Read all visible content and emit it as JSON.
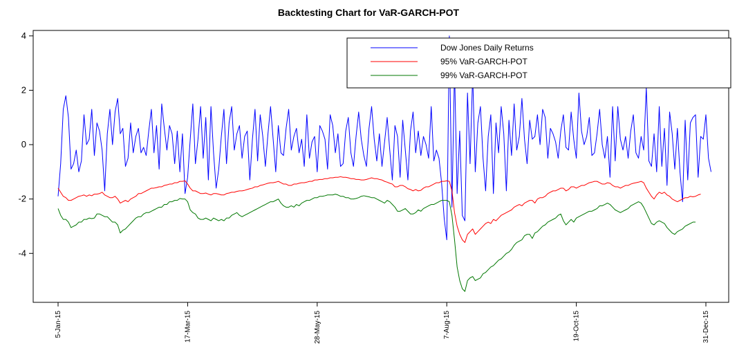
{
  "chart_data": {
    "type": "line",
    "title": "Backtesting Chart for VaR-GARCH-POT",
    "xlabel": "",
    "ylabel": "",
    "ylim": [
      -5.8,
      4.2
    ],
    "yticks": [
      -4,
      -2,
      0,
      2,
      4
    ],
    "x_tick_labels": [
      "5-Jan-15",
      "17-Mar-15",
      "28-May-15",
      "7-Aug-15",
      "19-Oct-15",
      "31-Dec-15"
    ],
    "x_tick_index": [
      0,
      50,
      100,
      150,
      200,
      250
    ],
    "n_points": 251,
    "legend_position": "top-right",
    "grid": false,
    "series": [
      {
        "name": "Dow Jones Daily Returns",
        "color": "#0000ff",
        "values": [
          -1.9,
          -0.7,
          1.3,
          1.8,
          1.0,
          -0.9,
          -0.7,
          -0.2,
          -1.0,
          -0.6,
          1.1,
          0.0,
          0.2,
          1.3,
          -0.4,
          0.8,
          0.5,
          -0.2,
          -1.7,
          0.4,
          1.3,
          0.0,
          1.2,
          1.7,
          0.4,
          0.6,
          -0.8,
          -0.5,
          0.8,
          -0.3,
          0.3,
          0.6,
          -0.3,
          -0.1,
          -0.4,
          0.5,
          1.3,
          -0.3,
          0.7,
          -0.9,
          1.5,
          0.6,
          -0.2,
          0.7,
          0.4,
          -0.7,
          0.5,
          -1.0,
          0.4,
          -1.8,
          -1.2,
          0.2,
          1.5,
          -0.7,
          0.2,
          1.4,
          -0.5,
          1.0,
          -1.3,
          1.4,
          -0.3,
          -1.6,
          -0.9,
          0.3,
          1.3,
          -0.7,
          0.8,
          1.4,
          -0.2,
          0.4,
          0.7,
          -0.5,
          0.3,
          0.5,
          -1.3,
          0.2,
          1.3,
          -0.6,
          1.1,
          0.3,
          -0.8,
          0.4,
          1.4,
          0.2,
          -1.0,
          0.7,
          -0.3,
          -0.4,
          0.6,
          1.3,
          -0.2,
          0.3,
          0.6,
          -0.3,
          0.2,
          -0.8,
          1.1,
          -0.5,
          0.1,
          0.3,
          -1.0,
          0.7,
          0.5,
          0.2,
          -0.9,
          1.1,
          0.7,
          -0.3,
          0.4,
          -0.8,
          -0.7,
          0.5,
          1.0,
          -0.3,
          -0.8,
          0.3,
          1.2,
          0.2,
          -0.4,
          -0.8,
          0.6,
          1.4,
          0.2,
          -0.6,
          0.4,
          -0.8,
          0.1,
          1.0,
          -0.2,
          -1.3,
          0.7,
          0.3,
          -1.2,
          0.9,
          -0.2,
          -1.3,
          0.5,
          1.2,
          -0.3,
          0.5,
          -0.4,
          0.3,
          0.0,
          -0.5,
          1.4,
          -0.6,
          -0.2,
          -0.5,
          -1.4,
          -2.7,
          -3.5,
          4.0,
          -2.3,
          2.8,
          -1.8,
          0.5,
          -2.6,
          -2.8,
          1.9,
          -0.7,
          2.6,
          -1.0,
          0.8,
          1.4,
          -0.5,
          -1.7,
          0.3,
          1.1,
          -1.8,
          0.8,
          -0.3,
          1.4,
          0.4,
          -1.7,
          0.9,
          -0.4,
          1.5,
          -0.2,
          0.3,
          1.7,
          0.2,
          -0.7,
          0.9,
          0.2,
          0.3,
          1.1,
          0.0,
          1.3,
          1.0,
          -0.5,
          0.6,
          0.4,
          0.1,
          -0.5,
          0.5,
          1.1,
          -0.1,
          -0.2,
          1.2,
          0.2,
          -0.5,
          1.9,
          0.5,
          0.0,
          0.3,
          1.0,
          -0.4,
          -0.3,
          0.4,
          1.3,
          0.0,
          -0.5,
          0.3,
          -1.2,
          1.4,
          -0.6,
          1.4,
          0.2,
          -0.2,
          0.3,
          -0.5,
          0.5,
          1.1,
          -0.3,
          -0.5,
          0.3,
          -0.2,
          2.1,
          -0.6,
          -0.8,
          0.4,
          -1.0,
          1.4,
          -0.8,
          0.6,
          -1.5,
          1.2,
          0.4,
          -0.9,
          0.6,
          -1.0,
          -2.1,
          0.9,
          -1.3,
          0.8,
          1.0,
          1.1,
          -1.2,
          0.3,
          0.2,
          1.1,
          -0.5,
          -1.0
        ]
      },
      {
        "name": "95% VaR-GARCH-POT",
        "color": "#ff0000",
        "values": [
          -1.6,
          -1.75,
          -1.9,
          -1.95,
          -2.05,
          -2.05,
          -2.0,
          -1.95,
          -1.9,
          -1.88,
          -1.85,
          -1.9,
          -1.85,
          -1.88,
          -1.82,
          -1.82,
          -1.8,
          -1.75,
          -1.85,
          -1.9,
          -1.95,
          -1.95,
          -1.9,
          -2.0,
          -2.15,
          -2.1,
          -2.05,
          -2.1,
          -2.0,
          -1.95,
          -1.9,
          -1.8,
          -1.8,
          -1.75,
          -1.7,
          -1.65,
          -1.6,
          -1.6,
          -1.58,
          -1.55,
          -1.55,
          -1.5,
          -1.48,
          -1.45,
          -1.45,
          -1.4,
          -1.4,
          -1.35,
          -1.35,
          -1.33,
          -1.45,
          -1.6,
          -1.7,
          -1.7,
          -1.75,
          -1.8,
          -1.8,
          -1.78,
          -1.82,
          -1.85,
          -1.8,
          -1.8,
          -1.82,
          -1.85,
          -1.85,
          -1.8,
          -1.78,
          -1.75,
          -1.75,
          -1.72,
          -1.7,
          -1.7,
          -1.68,
          -1.65,
          -1.62,
          -1.6,
          -1.55,
          -1.55,
          -1.5,
          -1.48,
          -1.45,
          -1.42,
          -1.4,
          -1.4,
          -1.38,
          -1.35,
          -1.4,
          -1.45,
          -1.45,
          -1.5,
          -1.5,
          -1.45,
          -1.45,
          -1.42,
          -1.4,
          -1.4,
          -1.38,
          -1.35,
          -1.35,
          -1.3,
          -1.3,
          -1.28,
          -1.28,
          -1.25,
          -1.25,
          -1.22,
          -1.22,
          -1.2,
          -1.2,
          -1.18,
          -1.2,
          -1.2,
          -1.22,
          -1.25,
          -1.25,
          -1.28,
          -1.28,
          -1.3,
          -1.3,
          -1.28,
          -1.25,
          -1.22,
          -1.25,
          -1.25,
          -1.28,
          -1.3,
          -1.35,
          -1.38,
          -1.42,
          -1.45,
          -1.55,
          -1.55,
          -1.5,
          -1.5,
          -1.55,
          -1.62,
          -1.65,
          -1.7,
          -1.65,
          -1.7,
          -1.68,
          -1.6,
          -1.55,
          -1.55,
          -1.5,
          -1.45,
          -1.4,
          -1.4,
          -1.35,
          -1.35,
          -1.33,
          -1.35,
          -1.7,
          -2.5,
          -3.0,
          -3.3,
          -3.5,
          -3.6,
          -3.3,
          -3.2,
          -3.1,
          -3.3,
          -3.2,
          -3.1,
          -3.0,
          -2.9,
          -2.85,
          -2.9,
          -2.75,
          -2.8,
          -2.7,
          -2.6,
          -2.55,
          -2.5,
          -2.45,
          -2.4,
          -2.3,
          -2.25,
          -2.2,
          -2.25,
          -2.15,
          -2.1,
          -2.05,
          -2.05,
          -2.15,
          -2.0,
          -1.95,
          -1.95,
          -1.9,
          -1.8,
          -1.75,
          -1.7,
          -1.7,
          -1.65,
          -1.6,
          -1.6,
          -1.7,
          -1.65,
          -1.55,
          -1.55,
          -1.6,
          -1.55,
          -1.5,
          -1.5,
          -1.45,
          -1.4,
          -1.38,
          -1.35,
          -1.35,
          -1.4,
          -1.45,
          -1.45,
          -1.4,
          -1.42,
          -1.5,
          -1.55,
          -1.55,
          -1.6,
          -1.55,
          -1.5,
          -1.5,
          -1.45,
          -1.42,
          -1.4,
          -1.38,
          -1.35,
          -1.4,
          -1.6,
          -1.75,
          -1.9,
          -2.0,
          -1.85,
          -1.75,
          -1.8,
          -1.75,
          -1.85,
          -1.9,
          -2.0,
          -2.05,
          -2.1,
          -2.05,
          -2.0,
          -1.95,
          -1.95,
          -1.9,
          -1.92,
          -1.9,
          -1.85,
          -1.82
        ]
      },
      {
        "name": "99% VaR-GARCH-POT",
        "color": "#007700",
        "values": [
          -2.35,
          -2.6,
          -2.75,
          -2.75,
          -2.85,
          -3.05,
          -3.0,
          -2.95,
          -2.85,
          -2.85,
          -2.75,
          -2.75,
          -2.7,
          -2.72,
          -2.7,
          -2.55,
          -2.55,
          -2.6,
          -2.65,
          -2.65,
          -2.75,
          -2.85,
          -2.85,
          -2.95,
          -3.25,
          -3.15,
          -3.1,
          -3.0,
          -2.9,
          -2.8,
          -2.7,
          -2.65,
          -2.65,
          -2.55,
          -2.5,
          -2.5,
          -2.45,
          -2.4,
          -2.35,
          -2.3,
          -2.3,
          -2.2,
          -2.2,
          -2.1,
          -2.1,
          -2.05,
          -2.05,
          -1.98,
          -2.0,
          -2.0,
          -2.1,
          -2.4,
          -2.5,
          -2.55,
          -2.7,
          -2.75,
          -2.75,
          -2.7,
          -2.75,
          -2.8,
          -2.7,
          -2.75,
          -2.8,
          -2.75,
          -2.8,
          -2.7,
          -2.7,
          -2.6,
          -2.55,
          -2.5,
          -2.6,
          -2.65,
          -2.6,
          -2.55,
          -2.5,
          -2.45,
          -2.4,
          -2.35,
          -2.3,
          -2.25,
          -2.2,
          -2.15,
          -2.1,
          -2.1,
          -2.05,
          -2.0,
          -2.15,
          -2.25,
          -2.3,
          -2.3,
          -2.25,
          -2.3,
          -2.2,
          -2.25,
          -2.15,
          -2.1,
          -2.05,
          -2.05,
          -2.0,
          -1.95,
          -1.95,
          -1.9,
          -1.9,
          -1.88,
          -1.85,
          -1.85,
          -1.85,
          -1.82,
          -1.85,
          -1.9,
          -1.9,
          -1.95,
          -1.95,
          -2.0,
          -2.0,
          -1.98,
          -1.95,
          -1.9,
          -1.88,
          -1.9,
          -1.92,
          -1.95,
          -1.95,
          -2.0,
          -2.05,
          -2.1,
          -2.15,
          -2.05,
          -2.1,
          -2.2,
          -2.3,
          -2.45,
          -2.45,
          -2.4,
          -2.35,
          -2.45,
          -2.55,
          -2.55,
          -2.5,
          -2.4,
          -2.45,
          -2.35,
          -2.3,
          -2.25,
          -2.2,
          -2.2,
          -2.15,
          -2.1,
          -2.05,
          -2.05,
          -2.05,
          -2.1,
          -2.6,
          -3.5,
          -4.5,
          -5.0,
          -5.3,
          -5.4,
          -5.0,
          -4.9,
          -4.85,
          -5.0,
          -4.95,
          -4.9,
          -4.75,
          -4.7,
          -4.6,
          -4.5,
          -4.45,
          -4.35,
          -4.25,
          -4.2,
          -4.1,
          -4.0,
          -3.95,
          -3.85,
          -3.7,
          -3.6,
          -3.55,
          -3.5,
          -3.35,
          -3.3,
          -3.3,
          -3.45,
          -3.25,
          -3.2,
          -3.1,
          -3.0,
          -2.95,
          -2.85,
          -2.8,
          -2.75,
          -2.7,
          -2.6,
          -2.55,
          -2.8,
          -2.95,
          -2.85,
          -2.75,
          -2.85,
          -2.7,
          -2.65,
          -2.6,
          -2.55,
          -2.5,
          -2.45,
          -2.45,
          -2.4,
          -2.35,
          -2.25,
          -2.25,
          -2.2,
          -2.15,
          -2.2,
          -2.3,
          -2.4,
          -2.45,
          -2.5,
          -2.45,
          -2.4,
          -2.35,
          -2.25,
          -2.2,
          -2.15,
          -2.1,
          -2.15,
          -2.3,
          -2.5,
          -2.7,
          -2.9,
          -2.95,
          -2.85,
          -2.8,
          -2.85,
          -2.9,
          -3.05,
          -3.15,
          -3.25,
          -3.3,
          -3.2,
          -3.15,
          -3.1,
          -3.0,
          -2.95,
          -2.9,
          -2.85,
          -2.85
        ]
      }
    ]
  }
}
